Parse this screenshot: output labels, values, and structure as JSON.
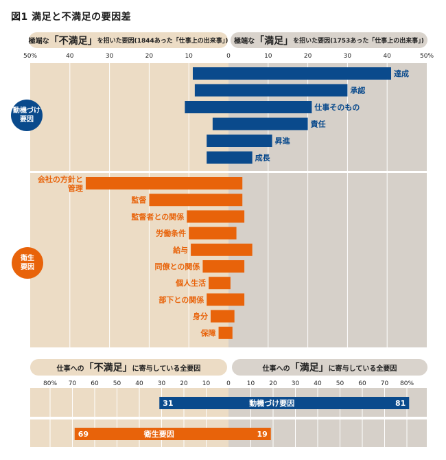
{
  "title": "図1  満足と不満足の要因差",
  "top_headers": {
    "left": {
      "pre": "極端な",
      "big": "「不満足」",
      "post": "を招いた要因(1844あった「仕事上の出来事」)"
    },
    "right": {
      "pre": "極端な",
      "big": "「満足」",
      "post": "を招いた要因(1753あった「仕事上の出来事」)"
    }
  },
  "bottom_headers": {
    "left": {
      "pre": "仕事への",
      "big": "「不満足」",
      "post": "に寄与している全要因"
    },
    "right": {
      "pre": "仕事への",
      "big": "「満足」",
      "post": "に寄与している全要因"
    }
  },
  "badges": {
    "motivators": "動機づけ\n要因",
    "hygiene": "衛生\n要因"
  },
  "colors": {
    "blue": "#0a4a8c",
    "orange": "#e8630a",
    "left_bg": "#ecdcc5",
    "right_bg": "#d6d0c9"
  },
  "chart_data": [
    {
      "type": "bar",
      "title": "満足と不満足の要因差",
      "orientation": "horizontal-diverging",
      "xlabel_left": "極端な「不満足」を招いた要因(1844あった「仕事上の出来事」)",
      "xlabel_right": "極端な「満足」を招いた要因(1753あった「仕事上の出来事」)",
      "xlim": [
        -50,
        50
      ],
      "ticks_left": [
        "50%",
        "40",
        "30",
        "20",
        "10"
      ],
      "ticks_center": "0",
      "ticks_right": [
        "10",
        "20",
        "30",
        "40",
        "50%"
      ],
      "grid": true,
      "groups": [
        {
          "name": "動機づけ要因",
          "color": "#0a4a8c",
          "categories": [
            "達成",
            "承認",
            "仕事そのもの",
            "責任",
            "昇進",
            "成長"
          ],
          "dissatisfaction": [
            9,
            8.5,
            11,
            4,
            5.5,
            5.5
          ],
          "satisfaction": [
            41,
            30,
            21,
            20,
            11,
            6
          ]
        },
        {
          "name": "衛生要因",
          "color": "#e8630a",
          "categories": [
            "会社の方針と\n管理",
            "監督",
            "監督者との関係",
            "労働条件",
            "給与",
            "同僚との関係",
            "個人生活",
            "部下との関係",
            "身分",
            "保障"
          ],
          "dissatisfaction": [
            36,
            20,
            10.5,
            10,
            9.5,
            6.5,
            5,
            5.5,
            4.5,
            2.5
          ],
          "satisfaction": [
            3.5,
            3.5,
            4,
            2,
            6,
            4,
            0.5,
            4,
            1.5,
            1
          ]
        }
      ]
    },
    {
      "type": "bar",
      "title": "仕事への「不満足」「満足」に寄与している全要因",
      "orientation": "horizontal-diverging",
      "xlim": [
        -80,
        80
      ],
      "ticks_left": [
        "80%",
        "70",
        "60",
        "50",
        "40",
        "30",
        "20",
        "10"
      ],
      "ticks_center": "0",
      "ticks_right": [
        "10",
        "20",
        "30",
        "40",
        "50",
        "60",
        "70",
        "80%"
      ],
      "grid": true,
      "categories": [
        "動機づけ要因",
        "衛生要因"
      ],
      "dissatisfaction": [
        31,
        69
      ],
      "satisfaction": [
        81,
        19
      ],
      "colors": [
        "#0a4a8c",
        "#e8630a"
      ],
      "data_labels": [
        [
          "31",
          "81"
        ],
        [
          "69",
          "19"
        ]
      ]
    }
  ]
}
